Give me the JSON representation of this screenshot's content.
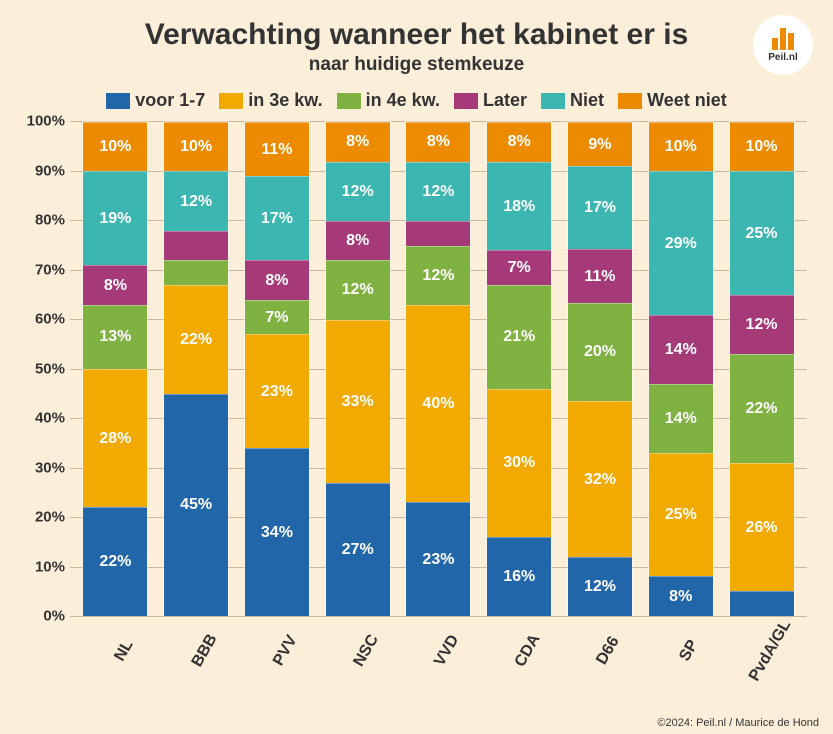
{
  "title": "Verwachting wanneer het kabinet er is",
  "subtitle": "naar huidige stemkeuze",
  "logo_text": "Peil.nl",
  "credit": "©2024: Peil.nl / Maurice de Hond",
  "chart": {
    "type": "stacked-bar",
    "ylim": [
      0,
      100
    ],
    "ytick_step": 10,
    "ylabel_suffix": "%",
    "background_color": "#fcefda",
    "grid_color": "#ccb89a",
    "label_fontsize": 16,
    "series": [
      {
        "key": "voor17",
        "label": "voor 1-7",
        "color": "#2266aa"
      },
      {
        "key": "kw3",
        "label": "in 3e kw.",
        "color": "#f2a900"
      },
      {
        "key": "kw4",
        "label": "in 4e kw.",
        "color": "#7fb241"
      },
      {
        "key": "later",
        "label": "Later",
        "color": "#a63a79"
      },
      {
        "key": "niet",
        "label": "Niet",
        "color": "#3bb6b0"
      },
      {
        "key": "weetniet",
        "label": "Weet niet",
        "color": "#ed8b00"
      }
    ],
    "categories": [
      "NL",
      "BBB",
      "PVV",
      "NSC",
      "VVD",
      "CDA",
      "D66",
      "SP",
      "PvdA/GL"
    ],
    "data": {
      "NL": {
        "voor17": 22,
        "kw3": 28,
        "kw4": 13,
        "later": 8,
        "niet": 19,
        "weetniet": 10
      },
      "BBB": {
        "voor17": 45,
        "kw3": 22,
        "kw4": 5,
        "later": 6,
        "niet": 12,
        "weetniet": 10
      },
      "PVV": {
        "voor17": 34,
        "kw3": 23,
        "kw4": 7,
        "later": 8,
        "niet": 17,
        "weetniet": 11
      },
      "NSC": {
        "voor17": 27,
        "kw3": 33,
        "kw4": 12,
        "later": 8,
        "niet": 12,
        "weetniet": 8
      },
      "VVD": {
        "voor17": 23,
        "kw3": 40,
        "kw4": 12,
        "later": 5,
        "niet": 12,
        "weetniet": 8
      },
      "CDA": {
        "voor17": 16,
        "kw3": 30,
        "kw4": 21,
        "later": 7,
        "niet": 18,
        "weetniet": 8
      },
      "D66": {
        "voor17": 12,
        "kw3": 32,
        "kw4": 20,
        "later": 11,
        "niet": 17,
        "weetniet": 9
      },
      "SP": {
        "voor17": 8,
        "kw3": 25,
        "kw4": 14,
        "later": 14,
        "niet": 29,
        "weetniet": 10
      },
      "PvdA/GL": {
        "voor17": 5,
        "kw3": 26,
        "kw4": 22,
        "later": 12,
        "niet": 25,
        "weetniet": 10
      }
    },
    "label_threshold": 7
  }
}
